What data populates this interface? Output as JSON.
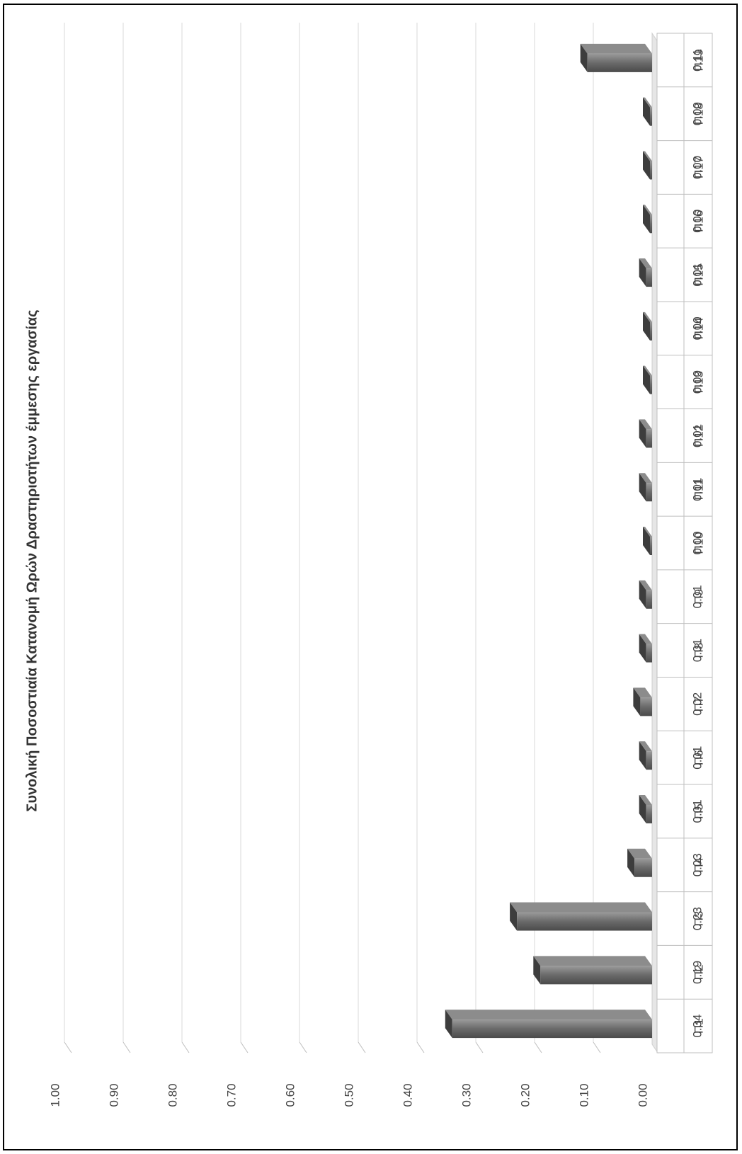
{
  "chart_data": {
    "type": "bar",
    "title": "Συνολική Ποσοστιαία Κατανομή Ωρών Δραστηριοτήτων έμμεσης εργασίας",
    "categories": [
      "Π1",
      "Π2",
      "Π3",
      "Π4",
      "Π5",
      "Π6",
      "Π7",
      "Π8",
      "Π9",
      "Π10",
      "Π11",
      "Π12",
      "Π13",
      "Π14",
      "Π15",
      "Π16",
      "Π17",
      "Π18",
      "Π19"
    ],
    "values": [
      0.34,
      0.19,
      0.23,
      0.03,
      0.01,
      0.01,
      0.02,
      0.01,
      0.01,
      0.0,
      0.01,
      0.01,
      0.0,
      0.0,
      0.01,
      0.0,
      0.0,
      0.0,
      0.11
    ],
    "value_labels": [
      "0.34",
      "0.19",
      "0.23",
      "0.03",
      "0.01",
      "0.01",
      "0.02",
      "0.01",
      "0.01",
      "0.00",
      "0.01",
      "0.01",
      "0.00",
      "0.00",
      "0.01",
      "0.00",
      "0.00",
      "0.00",
      "0.11"
    ],
    "ylim": [
      0,
      1.0
    ],
    "yticks": [
      "0.00",
      "0.10",
      "0.20",
      "0.30",
      "0.40",
      "0.50",
      "0.60",
      "0.70",
      "0.80",
      "0.90",
      "1.00"
    ],
    "grid": true,
    "data_table": true,
    "orientation": "rotated-90-ccw",
    "bar_color": "#6e6e6e"
  }
}
